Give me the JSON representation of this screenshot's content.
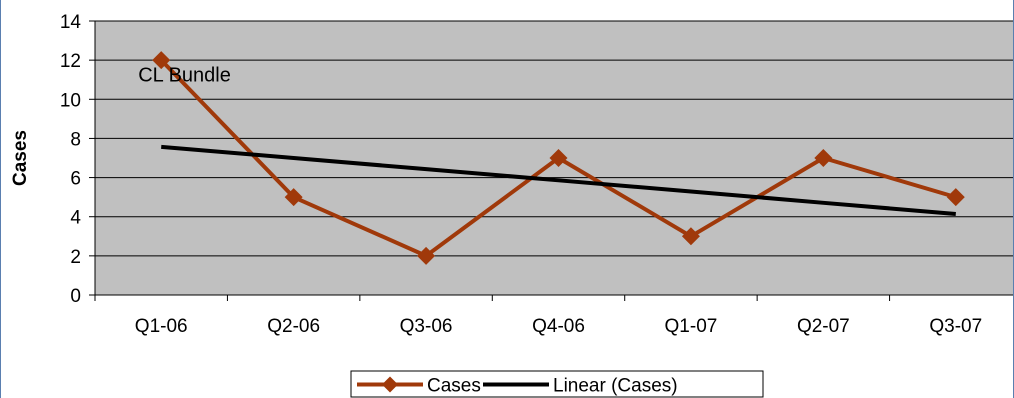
{
  "chart_data": {
    "type": "line",
    "categories": [
      "Q1-06",
      "Q2-06",
      "Q3-06",
      "Q4-06",
      "Q1-07",
      "Q2-07",
      "Q3-07"
    ],
    "series": [
      {
        "name": "Cases",
        "values": [
          12,
          5,
          2,
          7,
          3,
          7,
          5
        ],
        "color": "#A0390A",
        "marker": "diamond"
      },
      {
        "name": "Linear (Cases)",
        "values": [
          7.57,
          7.0,
          6.43,
          5.86,
          5.29,
          4.71,
          4.14
        ],
        "color": "#000000",
        "trendline": true
      }
    ],
    "ylabel": "Cases",
    "xlabel": "",
    "ylim": [
      0,
      14
    ],
    "yticks": [
      0,
      2,
      4,
      6,
      8,
      10,
      12,
      14
    ],
    "annotations": [
      {
        "text": "CL Bundle",
        "category": "Q1-06",
        "value": 10.9
      }
    ],
    "plot_background": "#C0C0C0",
    "gridlines": true,
    "legend_position": "bottom"
  }
}
